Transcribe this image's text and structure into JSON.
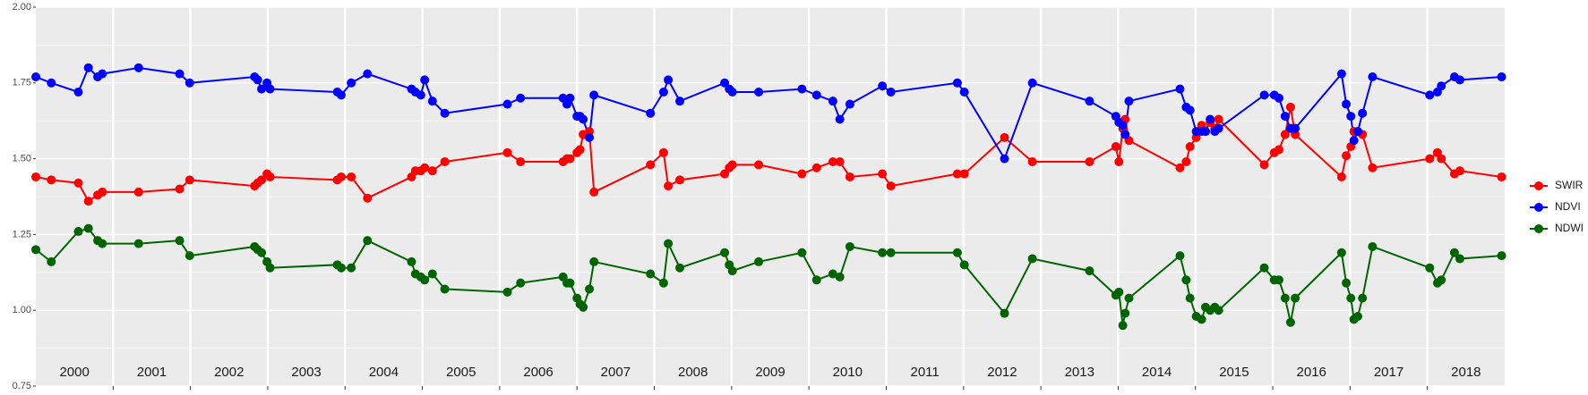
{
  "chart_data": {
    "type": "line",
    "x": [
      2000.0,
      2000.2,
      2000.55,
      2000.68,
      2000.8,
      2000.86,
      2001.33,
      2001.86,
      2001.99,
      2002.83,
      2002.87,
      2002.92,
      2002.99,
      2003.03,
      2003.9,
      2003.95,
      2004.08,
      2004.29,
      2004.86,
      2004.91,
      2004.98,
      2005.03,
      2005.13,
      2005.29,
      2006.1,
      2006.27,
      2006.82,
      2006.87,
      2006.91,
      2007.0,
      2007.04,
      2007.08,
      2007.16,
      2007.22,
      2007.95,
      2008.12,
      2008.18,
      2008.33,
      2008.91,
      2008.97,
      2009.01,
      2009.35,
      2009.91,
      2010.1,
      2010.31,
      2010.4,
      2010.53,
      2010.95,
      2011.06,
      2011.92,
      2012.01,
      2012.53,
      2012.89,
      2013.63,
      2013.97,
      2014.01,
      2014.06,
      2014.09,
      2014.14,
      2014.8,
      2014.88,
      2014.93,
      2015.01,
      2015.08,
      2015.13,
      2015.19,
      2015.25,
      2015.3,
      2015.89,
      2016.02,
      2016.08,
      2016.16,
      2016.23,
      2016.29,
      2016.89,
      2016.95,
      2017.01,
      2017.05,
      2017.1,
      2017.16,
      2017.29,
      2018.03,
      2018.13,
      2018.18,
      2018.35,
      2018.42,
      2018.96
    ],
    "series": [
      {
        "name": "SWIR",
        "color": "#ff0000",
        "values": [
          1.44,
          1.43,
          1.42,
          1.36,
          1.38,
          1.39,
          1.39,
          1.4,
          1.43,
          1.41,
          1.42,
          1.43,
          1.45,
          1.44,
          1.43,
          1.44,
          1.44,
          1.37,
          1.44,
          1.46,
          1.46,
          1.47,
          1.46,
          1.49,
          1.52,
          1.49,
          1.49,
          1.5,
          1.5,
          1.52,
          1.53,
          1.58,
          1.59,
          1.39,
          1.48,
          1.52,
          1.41,
          1.43,
          1.45,
          1.47,
          1.48,
          1.48,
          1.45,
          1.47,
          1.49,
          1.49,
          1.44,
          1.45,
          1.41,
          1.45,
          1.45,
          1.57,
          1.49,
          1.49,
          1.54,
          1.49,
          1.6,
          1.63,
          1.56,
          1.47,
          1.49,
          1.54,
          1.57,
          1.61,
          1.59,
          1.62,
          1.6,
          1.63,
          1.48,
          1.52,
          1.53,
          1.58,
          1.67,
          1.58,
          1.44,
          1.51,
          1.54,
          1.59,
          1.59,
          1.58,
          1.47,
          1.5,
          1.52,
          1.5,
          1.45,
          1.46,
          1.44
        ]
      },
      {
        "name": "NDVI",
        "color": "#0000ff",
        "values": [
          1.77,
          1.75,
          1.72,
          1.8,
          1.77,
          1.78,
          1.8,
          1.78,
          1.75,
          1.77,
          1.76,
          1.73,
          1.75,
          1.73,
          1.72,
          1.71,
          1.75,
          1.78,
          1.73,
          1.72,
          1.71,
          1.76,
          1.69,
          1.65,
          1.68,
          1.7,
          1.7,
          1.68,
          1.7,
          1.64,
          1.64,
          1.63,
          1.57,
          1.71,
          1.65,
          1.72,
          1.76,
          1.69,
          1.75,
          1.73,
          1.72,
          1.72,
          1.73,
          1.71,
          1.69,
          1.63,
          1.68,
          1.74,
          1.72,
          1.75,
          1.72,
          1.5,
          1.75,
          1.69,
          1.64,
          1.62,
          1.61,
          1.58,
          1.69,
          1.73,
          1.67,
          1.66,
          1.59,
          1.59,
          1.59,
          1.63,
          1.59,
          1.6,
          1.71,
          1.71,
          1.7,
          1.64,
          1.6,
          1.6,
          1.78,
          1.68,
          1.64,
          1.56,
          1.59,
          1.65,
          1.77,
          1.71,
          1.72,
          1.74,
          1.77,
          1.76,
          1.77
        ]
      },
      {
        "name": "NDWI",
        "color": "#006400",
        "values": [
          1.2,
          1.16,
          1.26,
          1.27,
          1.23,
          1.22,
          1.22,
          1.23,
          1.18,
          1.21,
          1.2,
          1.19,
          1.16,
          1.14,
          1.15,
          1.14,
          1.14,
          1.23,
          1.16,
          1.12,
          1.11,
          1.1,
          1.12,
          1.07,
          1.06,
          1.09,
          1.11,
          1.09,
          1.09,
          1.04,
          1.02,
          1.01,
          1.07,
          1.16,
          1.12,
          1.09,
          1.22,
          1.14,
          1.19,
          1.15,
          1.13,
          1.16,
          1.19,
          1.1,
          1.12,
          1.11,
          1.21,
          1.19,
          1.19,
          1.19,
          1.15,
          0.99,
          1.17,
          1.13,
          1.05,
          1.06,
          0.95,
          0.99,
          1.04,
          1.18,
          1.1,
          1.04,
          0.98,
          0.97,
          1.01,
          1.0,
          1.01,
          1.0,
          1.14,
          1.1,
          1.1,
          1.04,
          0.96,
          1.04,
          1.19,
          1.09,
          1.04,
          0.97,
          0.98,
          1.04,
          1.21,
          1.14,
          1.09,
          1.1,
          1.19,
          1.17,
          1.18
        ]
      }
    ],
    "xlim": [
      2000,
      2019
    ],
    "xticks": [
      2001,
      2002,
      2003,
      2004,
      2005,
      2006,
      2007,
      2008,
      2009,
      2010,
      2011,
      2012,
      2013,
      2014,
      2015,
      2016,
      2017,
      2018
    ],
    "year_labels": [
      "2000",
      "2001",
      "2002",
      "2003",
      "2004",
      "2005",
      "2006",
      "2007",
      "2008",
      "2009",
      "2010",
      "2011",
      "2012",
      "2013",
      "2014",
      "2015",
      "2016",
      "2017",
      "2018"
    ],
    "ylim": [
      0.75,
      2.0
    ],
    "yticks": [
      0.75,
      {
        "value": 1,
        "label": "1.00"
      },
      1.25,
      {
        "value": 1.5,
        "label": "1.50"
      },
      1.75,
      {
        "value": 2,
        "label": "2.00"
      }
    ],
    "grid": true,
    "legend": "right"
  }
}
